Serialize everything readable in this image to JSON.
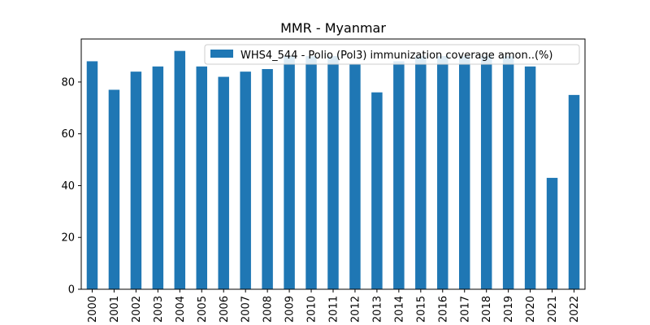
{
  "chart_data": {
    "type": "bar",
    "title": "MMR - Myanmar",
    "xlabel": "",
    "ylabel": "",
    "categories": [
      "2000",
      "2001",
      "2002",
      "2003",
      "2004",
      "2005",
      "2006",
      "2007",
      "2008",
      "2009",
      "2010",
      "2011",
      "2012",
      "2013",
      "2014",
      "2015",
      "2016",
      "2017",
      "2018",
      "2019",
      "2020",
      "2021",
      "2022"
    ],
    "series": [
      {
        "name": "WHS4_544 - Polio (Pol3) immunization coverage amon..(%)",
        "color": "#1f77b4",
        "values": [
          88,
          77,
          84,
          86,
          92,
          86,
          82,
          84,
          85,
          90,
          90,
          90,
          87,
          76,
          88,
          90,
          90,
          90,
          90,
          90,
          86,
          43,
          75
        ]
      }
    ],
    "ylim": [
      0,
      96.6
    ],
    "yticks": [
      0,
      20,
      40,
      60,
      80
    ],
    "grid": false,
    "legend_position": "top-right"
  }
}
